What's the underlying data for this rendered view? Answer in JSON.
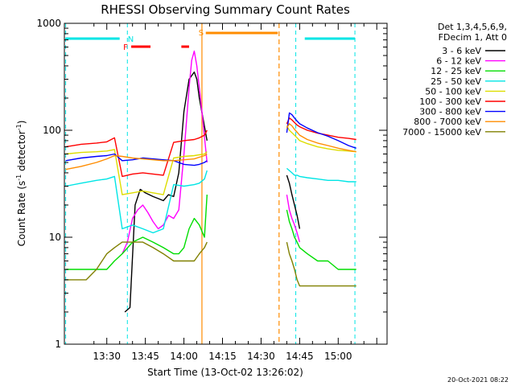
{
  "chart_data": {
    "type": "line",
    "title": "RHESSI Observing Summary Count Rates",
    "xlabel": "Start Time (13-Oct-02 13:26:02)",
    "ylabel_main": "Count Rate (s",
    "ylabel_sup1": "-1",
    "ylabel_mid": " detector",
    "ylabel_sup2": "-1",
    "ylabel_end": ")",
    "y_scale": "log",
    "ylim": [
      1,
      1000
    ],
    "y_ticks": [
      {
        "value": 1,
        "label": "1"
      },
      {
        "value": 10,
        "label": "10"
      },
      {
        "value": 100,
        "label": "100"
      },
      {
        "value": 1000,
        "label": "1000"
      }
    ],
    "x_range_minutes": [
      13.5,
      139.0
    ],
    "x_ticks": [
      {
        "minute": 30,
        "label": "13:30"
      },
      {
        "minute": 45,
        "label": "13:45"
      },
      {
        "minute": 60,
        "label": "14:00"
      },
      {
        "minute": 75,
        "label": "14:15"
      },
      {
        "minute": 90,
        "label": "14:30"
      },
      {
        "minute": 105,
        "label": "14:45"
      },
      {
        "minute": 120,
        "label": "15:00"
      }
    ],
    "legend_header": [
      "Det 1,3,4,5,6,9,",
      "FDecim 1, Att 0"
    ],
    "legend_placement": "right",
    "series": [
      {
        "name": "3 - 6 keV",
        "color": "#000000",
        "x": [
          26,
          28,
          35,
          37,
          39,
          41,
          43,
          45,
          48,
          50,
          52,
          54,
          56,
          58,
          60,
          62,
          64,
          65,
          66,
          69
        ],
        "y": [
          null,
          null,
          null,
          2.0,
          2.2,
          20,
          28,
          26,
          24,
          23,
          22,
          25,
          24,
          40,
          150,
          300,
          350,
          300,
          200,
          80
        ]
      },
      {
        "name": "6 - 12 keV",
        "color": "#ff00ff",
        "x": [
          36,
          38,
          40,
          42,
          44,
          46,
          48,
          50,
          52,
          54,
          56,
          58,
          60,
          62,
          63,
          64,
          65,
          66,
          67,
          69
        ],
        "y": [
          7,
          9,
          15,
          18,
          20,
          17,
          14,
          12,
          13,
          16,
          15,
          18,
          60,
          250,
          450,
          550,
          400,
          250,
          150,
          50
        ]
      },
      {
        "name": "12 - 25 keV",
        "color": "#00dd00",
        "x": [
          14,
          20,
          26,
          30,
          33,
          36,
          40,
          44,
          48,
          52,
          56,
          58,
          60,
          62,
          64,
          66,
          68,
          69
        ],
        "y": [
          5,
          5,
          5,
          5,
          6,
          7,
          9,
          10,
          9,
          8,
          7,
          7,
          8,
          12,
          15,
          13,
          10,
          25
        ]
      },
      {
        "name": "25 - 50 keV",
        "color": "#00e5e5",
        "x": [
          14,
          20,
          26,
          30,
          33,
          36,
          40,
          44,
          48,
          52,
          56,
          60,
          64,
          66,
          68,
          69
        ],
        "y": [
          30,
          32,
          34,
          35,
          37,
          12,
          13,
          12,
          11,
          12,
          31,
          30,
          31,
          32,
          35,
          42
        ]
      },
      {
        "name": "50 - 100 keV",
        "color": "#dddd00",
        "x": [
          14,
          20,
          26,
          30,
          33,
          36,
          40,
          44,
          48,
          52,
          56,
          60,
          64,
          66,
          68,
          69
        ],
        "y": [
          60,
          62,
          63,
          64,
          66,
          25,
          26,
          27,
          26,
          25,
          55,
          57,
          58,
          59,
          60,
          63
        ]
      },
      {
        "name": "100 - 300 keV",
        "color": "#ff0000",
        "x": [
          14,
          20,
          26,
          30,
          33,
          36,
          40,
          44,
          48,
          52,
          56,
          60,
          64,
          66,
          68,
          69
        ],
        "y": [
          70,
          74,
          76,
          78,
          85,
          37,
          39,
          40,
          39,
          38,
          77,
          80,
          82,
          85,
          90,
          100
        ]
      },
      {
        "name": "300 - 800 keV",
        "color": "#0000ff",
        "x": [
          14,
          20,
          26,
          30,
          33,
          36,
          40,
          44,
          48,
          52,
          56,
          60,
          64,
          66,
          68,
          69
        ],
        "y": [
          52,
          55,
          57,
          58,
          60,
          52,
          53,
          55,
          54,
          53,
          52,
          48,
          47,
          48,
          50,
          52
        ]
      },
      {
        "name": "800 - 7000 keV",
        "color": "#ff8c00",
        "x": [
          14,
          20,
          26,
          30,
          33,
          36,
          40,
          44,
          48,
          52,
          56,
          60,
          64,
          66,
          68,
          69
        ],
        "y": [
          43,
          46,
          50,
          54,
          58,
          57,
          55,
          54,
          53,
          52,
          52,
          53,
          54,
          56,
          58,
          60
        ]
      },
      {
        "name": "7000 - 15000 keV",
        "color": "#808000",
        "x": [
          14,
          18,
          22,
          26,
          30,
          33,
          36,
          40,
          44,
          48,
          52,
          56,
          60,
          64,
          66,
          68,
          69
        ],
        "y": [
          4,
          4,
          4,
          5,
          7,
          8,
          9,
          9,
          9,
          8,
          7,
          6,
          6,
          6,
          7,
          8,
          9
        ]
      }
    ],
    "series_part2": [
      {
        "name": "3 - 6 keV",
        "x": [
          100,
          101,
          102,
          103,
          104,
          105
        ],
        "y": [
          38,
          32,
          25,
          20,
          16,
          12
        ]
      },
      {
        "name": "6 - 12 keV",
        "x": [
          100,
          101,
          102,
          103,
          104,
          105
        ],
        "y": [
          25,
          18,
          15,
          13,
          11,
          9
        ]
      },
      {
        "name": "12 - 25 keV",
        "x": [
          100,
          101,
          102,
          103,
          104,
          105,
          108,
          112,
          116,
          120,
          124,
          127
        ],
        "y": [
          18,
          14,
          12,
          10,
          9,
          8,
          7,
          6,
          6,
          5,
          5,
          5
        ]
      },
      {
        "name": "25 - 50 keV",
        "x": [
          100,
          101,
          102,
          103,
          104,
          105,
          108,
          112,
          116,
          120,
          124,
          127
        ],
        "y": [
          44,
          42,
          40,
          38,
          38,
          37,
          36,
          35,
          34,
          34,
          33,
          33
        ]
      },
      {
        "name": "50 - 100 keV",
        "x": [
          100,
          101,
          102,
          103,
          104,
          105,
          108,
          112,
          116,
          120,
          124,
          127
        ],
        "y": [
          110,
          100,
          95,
          90,
          85,
          80,
          75,
          70,
          67,
          65,
          64,
          63
        ]
      },
      {
        "name": "100 - 300 keV",
        "x": [
          100,
          101,
          102,
          103,
          104,
          105,
          108,
          112,
          116,
          120,
          124,
          127
        ],
        "y": [
          115,
          130,
          125,
          118,
          112,
          108,
          100,
          94,
          90,
          86,
          84,
          82
        ]
      },
      {
        "name": "300 - 800 keV",
        "x": [
          100,
          101,
          102,
          103,
          104,
          105,
          108,
          112,
          116,
          120,
          124,
          127
        ],
        "y": [
          95,
          145,
          140,
          130,
          122,
          115,
          105,
          95,
          88,
          80,
          72,
          68
        ]
      },
      {
        "name": "800 - 7000 keV",
        "x": [
          100,
          101,
          102,
          103,
          104,
          105,
          108,
          112,
          116,
          120,
          124,
          127
        ],
        "y": [
          105,
          115,
          110,
          102,
          96,
          90,
          82,
          76,
          72,
          68,
          65,
          63
        ]
      },
      {
        "name": "7000 - 15000 keV",
        "x": [
          100,
          101,
          102,
          103,
          104,
          105,
          108,
          112,
          116,
          120,
          124,
          127
        ],
        "y": [
          9,
          7,
          6,
          5,
          4,
          3.5,
          3.5,
          3.5,
          3.5,
          3.5,
          3.5,
          3.5
        ]
      }
    ],
    "markers": {
      "night_lines_minutes": [
        14,
        38,
        103.5,
        126.5
      ],
      "saa_lines_minutes": [
        67,
        97
      ],
      "night_bars": [
        [
          14,
          35
        ],
        [
          107,
          126.5
        ]
      ],
      "night_label": "N",
      "saa_bar": [
        68.5,
        96.5
      ],
      "saa_label": "S",
      "flare_bars": [
        [
          39.5,
          47
        ],
        [
          59,
          62
        ]
      ],
      "flare_label": "F",
      "colors": {
        "night": "#00e5e5",
        "saa": "#ff8c00",
        "flare": "#ff0000"
      }
    },
    "timestamp": "20-Oct-2021 08:22"
  }
}
